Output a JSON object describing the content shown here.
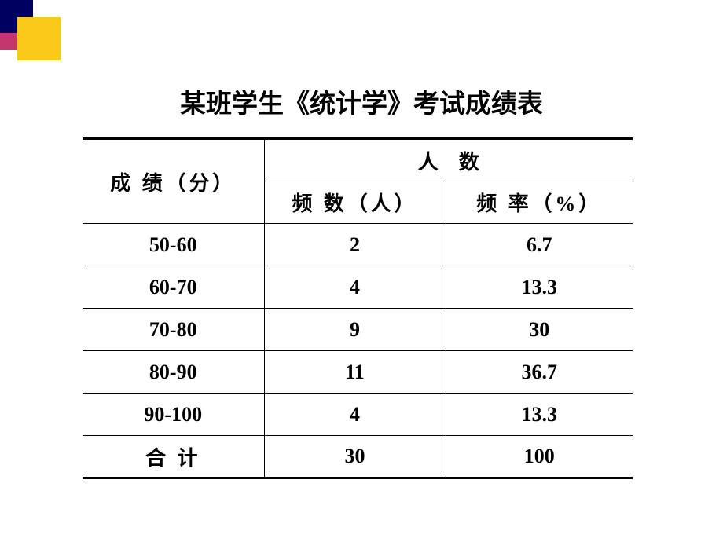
{
  "decoration": {
    "colors": {
      "darkBlue": "#000060",
      "yellow": "#f9c818",
      "magenta": "#c4366e"
    }
  },
  "title": "某班学生《统计学》考试成绩表",
  "table": {
    "headers": {
      "scoreLabel": "成 绩（分）",
      "countLabel": "人　数",
      "freqLabel": "频 数（人）",
      "rateLabel": "频 率（%）"
    },
    "rows": [
      {
        "range": "50-60",
        "freq": "2",
        "rate": "6.7"
      },
      {
        "range": "60-70",
        "freq": "4",
        "rate": "13.3"
      },
      {
        "range": "70-80",
        "freq": "9",
        "rate": "30"
      },
      {
        "range": "80-90",
        "freq": "11",
        "rate": "36.7"
      },
      {
        "range": "90-100",
        "freq": "4",
        "rate": "13.3"
      }
    ],
    "footer": {
      "label": "合 计",
      "freq": "30",
      "rate": "100"
    }
  },
  "style": {
    "backgroundColor": "#ffffff",
    "textColor": "#000000",
    "borderColor": "#000000",
    "titleFontSize": 33,
    "tableFontSize": 26,
    "borderThick": 3,
    "borderThin": 1.5
  }
}
